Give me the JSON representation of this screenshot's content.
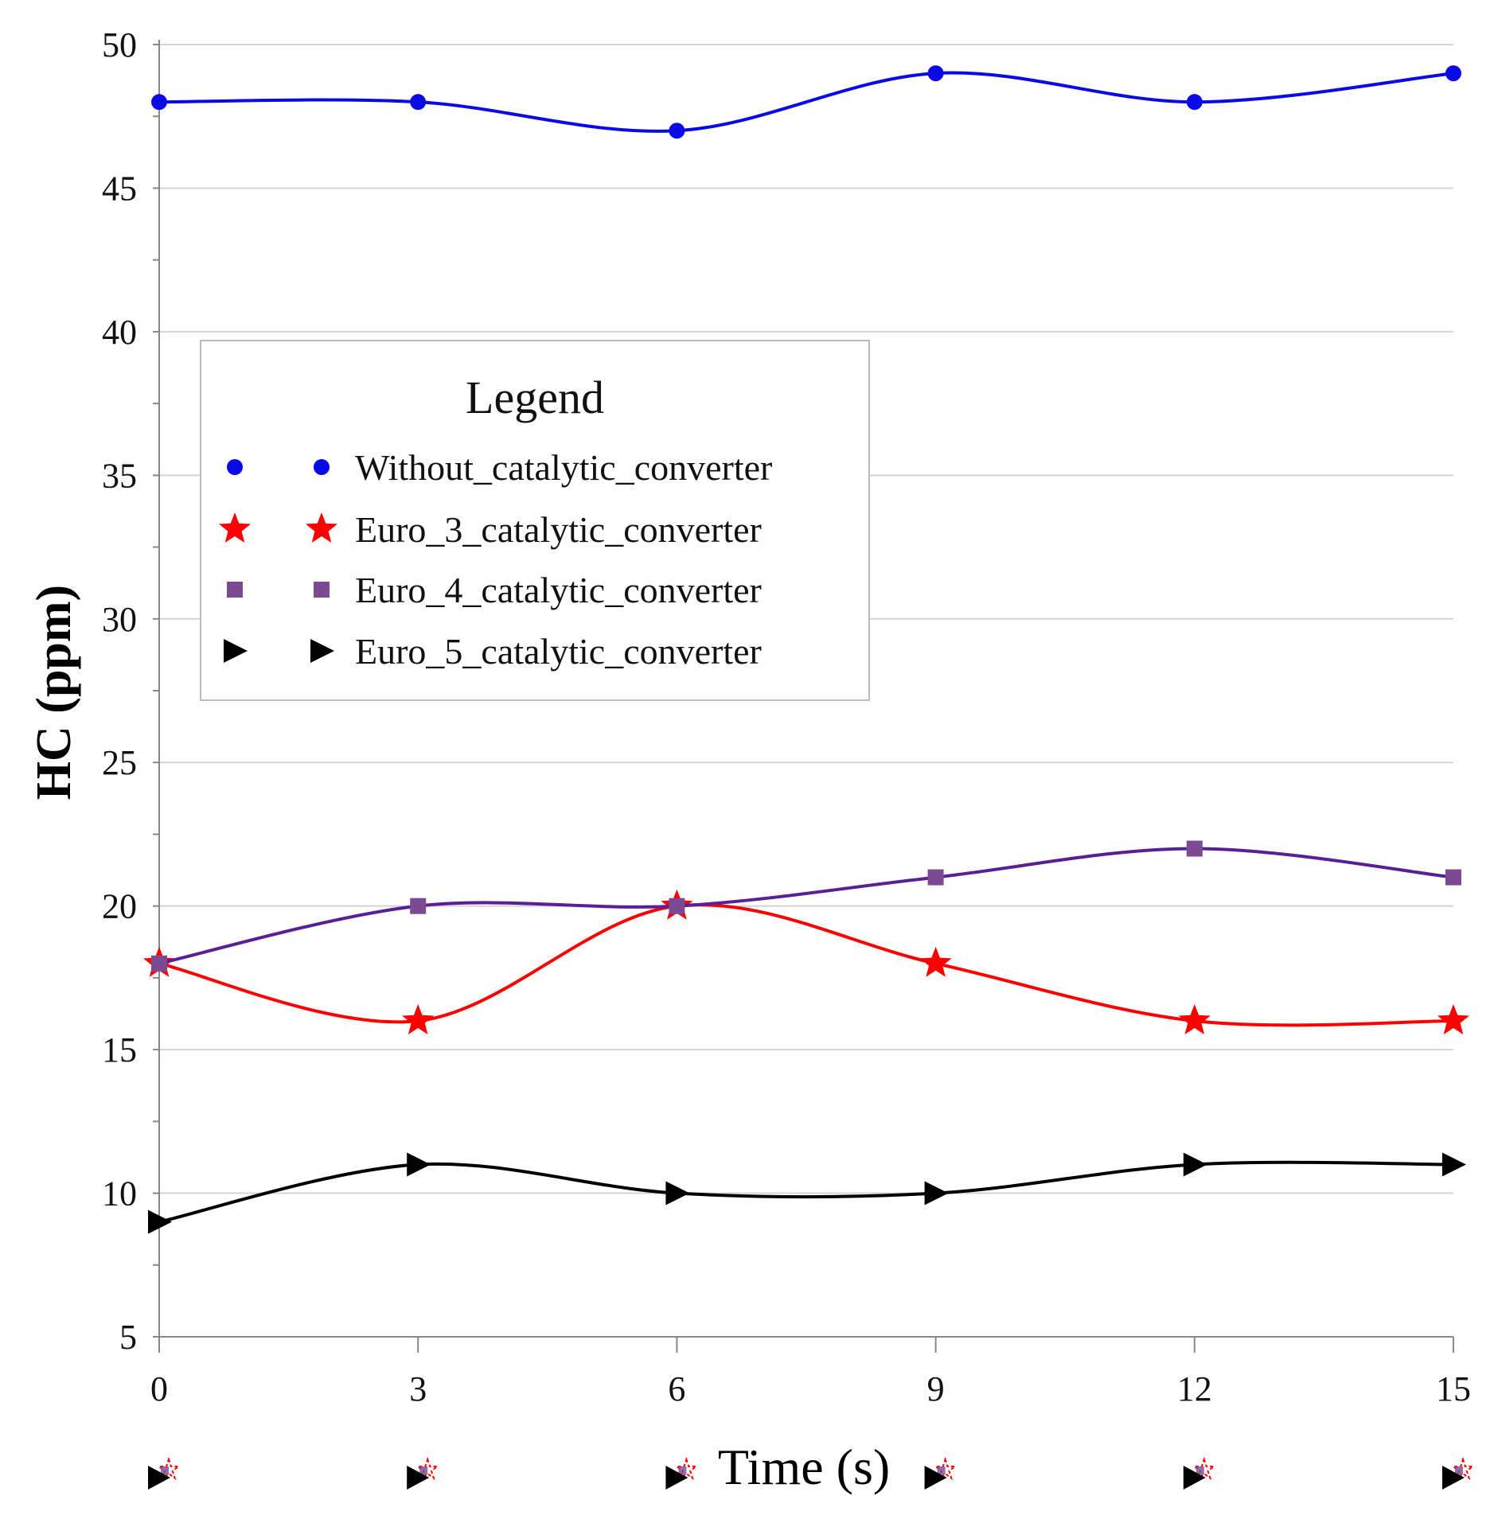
{
  "chart_data": {
    "type": "line",
    "title": "",
    "xlabel": "Time (s)",
    "ylabel": "HC (ppm)",
    "x": [
      0,
      3,
      6,
      9,
      12,
      15
    ],
    "xlim": [
      0,
      15
    ],
    "ylim": [
      5,
      50
    ],
    "x_ticks": [
      "0",
      "3",
      "6",
      "9",
      "12",
      "15"
    ],
    "y_ticks": [
      "5",
      "10",
      "15",
      "20",
      "25",
      "30",
      "35",
      "40",
      "45",
      "50"
    ],
    "grid": true,
    "legend": {
      "title": "Legend",
      "position": "upper-left"
    },
    "series": [
      {
        "name": "Without_catalytic_converter",
        "marker": "circle",
        "color": "#0a0ae6",
        "values": [
          48,
          48,
          47,
          49,
          48,
          49
        ]
      },
      {
        "name": "Euro_3_catalytic_converter",
        "marker": "star",
        "color": "#ff0000",
        "values": [
          18,
          16,
          20,
          18,
          16,
          16
        ]
      },
      {
        "name": "Euro_4_catalytic_converter",
        "marker": "square",
        "color": "#5a1e96",
        "marker_color": "#7b4a93",
        "values": [
          18,
          20,
          20,
          21,
          22,
          21
        ]
      },
      {
        "name": "Euro_5_catalytic_converter",
        "marker": "triangle-right",
        "color": "#000000",
        "values": [
          9,
          11,
          10,
          10,
          11,
          11
        ]
      }
    ]
  }
}
